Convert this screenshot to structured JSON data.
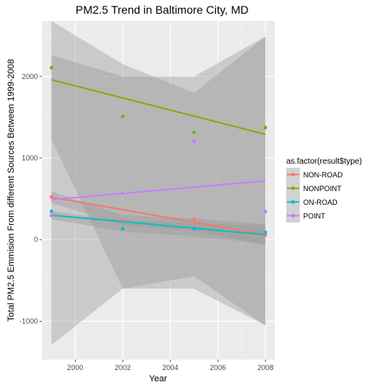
{
  "chart_data": {
    "type": "scatter",
    "title": "PM2.5 Trend in Baltimore City, MD",
    "xlabel": "Year",
    "ylabel": "Total PM2.5 Emmision From different Sources Between 1999-2008",
    "xlim": [
      1998.6,
      2008.4
    ],
    "ylim": [
      -1470,
      2680
    ],
    "x_ticks": [
      2000,
      2002,
      2004,
      2006,
      2008
    ],
    "y_ticks": [
      -1000,
      0,
      1000,
      2000
    ],
    "grid": true,
    "legend": {
      "title": "as.factor(result$type)",
      "placement": "right"
    },
    "smoothing": "linear fit with shaded confidence band",
    "series": [
      {
        "name": "NON-ROAD",
        "color": "#f8766d",
        "x": [
          1999,
          2002,
          2005,
          2008
        ],
        "y": [
          522.94,
          240.85,
          248.93,
          55.82
        ],
        "fit": {
          "x": [
            1999,
            2008
          ],
          "y": [
            520,
            60
          ]
        },
        "band": {
          "x": [
            1999,
            2002,
            2005,
            2008
          ],
          "upper": [
            590,
            300,
            260,
            190
          ],
          "lower": [
            450,
            180,
            110,
            -70
          ]
        }
      },
      {
        "name": "NONPOINT",
        "color": "#7cae00",
        "x": [
          1999,
          2002,
          2005,
          2008
        ],
        "y": [
          2107.63,
          1509.5,
          1316.0,
          1373.21
        ],
        "fit": {
          "x": [
            1999,
            2008
          ],
          "y": [
            1960,
            1290
          ]
        },
        "band": {
          "x": [
            1999,
            2002,
            2005,
            2008
          ],
          "upper": [
            2680,
            2150,
            1800,
            2490
          ],
          "lower": [
            -1290,
            -600,
            -450,
            -1050
          ]
        }
      },
      {
        "name": "ON-ROAD",
        "color": "#00bfc4",
        "x": [
          1999,
          2002,
          2005,
          2008
        ],
        "y": [
          346.82,
          134.31,
          130.43,
          88.28
        ],
        "fit": {
          "x": [
            1999,
            2008
          ],
          "y": [
            300,
            60
          ]
        },
        "band": {
          "x": [
            1999,
            2002,
            2005,
            2008
          ],
          "upper": [
            350,
            240,
            200,
            180
          ],
          "lower": [
            250,
            100,
            40,
            -50
          ]
        }
      },
      {
        "name": "POINT",
        "color": "#c77cff",
        "x": [
          1999,
          2002,
          2005,
          2008
        ],
        "y": [
          296.8,
          569.26,
          1202.49,
          344.98
        ],
        "fit": {
          "x": [
            1999,
            2008
          ],
          "y": [
            490,
            720
          ]
        },
        "band": {
          "x": [
            1999,
            2002,
            2005,
            2008
          ],
          "upper": [
            2260,
            2000,
            2000,
            2490
          ],
          "lower": [
            1230,
            -600,
            -600,
            -1050
          ]
        }
      }
    ]
  }
}
